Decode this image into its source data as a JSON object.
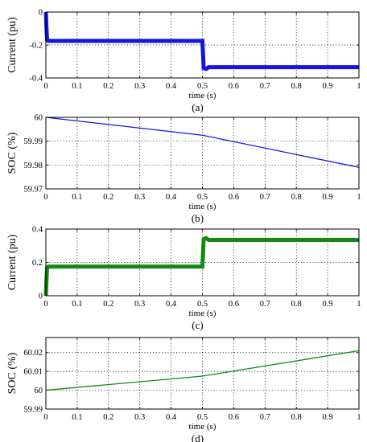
{
  "chart_data": [
    {
      "type": "line",
      "caption": "(a)",
      "xlabel": "time (s)",
      "ylabel": "Current (pu)",
      "xlim": [
        0,
        1
      ],
      "ylim": [
        -0.4,
        0
      ],
      "xticks": [
        "0",
        "0.1",
        "0.2",
        "0.3",
        "0.4",
        "0.5",
        "0.6",
        "0.7",
        "0.8",
        "0.9",
        "1"
      ],
      "yticks": [
        "0",
        "-0.2",
        "-0.4"
      ],
      "grid": true,
      "series": [
        {
          "color": "#1414e6",
          "thick": true,
          "x": [
            0,
            0.002,
            0.004,
            0.008,
            0.5,
            0.504,
            0.512,
            0.52,
            1.0
          ],
          "y": [
            0,
            -0.1,
            -0.17,
            -0.175,
            -0.175,
            -0.34,
            -0.345,
            -0.335,
            -0.335
          ]
        }
      ]
    },
    {
      "type": "line",
      "caption": "(b)",
      "xlabel": "time (s)",
      "ylabel": "SOC (%)",
      "xlim": [
        0,
        1
      ],
      "ylim": [
        59.97,
        60.0
      ],
      "xticks": [
        "0",
        "0.1",
        "0.2",
        "0.3",
        "0.4",
        "0.5",
        "0.6",
        "0.7",
        "0.8",
        "0.9",
        "1"
      ],
      "yticks": [
        "60",
        "59.99",
        "59.98",
        "59.97"
      ],
      "grid": true,
      "series": [
        {
          "color": "#1414e6",
          "thick": false,
          "x": [
            0,
            0.5,
            1.0
          ],
          "y": [
            60.0,
            59.9925,
            59.979
          ]
        }
      ]
    },
    {
      "type": "line",
      "caption": "(c)",
      "xlabel": "time (s)",
      "ylabel": "Current (pu)",
      "xlim": [
        0,
        1
      ],
      "ylim": [
        0,
        0.4
      ],
      "xticks": [
        "0",
        "0.1",
        "0.2",
        "0.3",
        "0.4",
        "0.5",
        "0.6",
        "0.7",
        "0.8",
        "0.9",
        "1"
      ],
      "yticks": [
        "0.4",
        "0.2",
        "0"
      ],
      "grid": true,
      "series": [
        {
          "color": "#128a12",
          "thick": true,
          "x": [
            0,
            0.002,
            0.004,
            0.008,
            0.5,
            0.504,
            0.512,
            0.52,
            1.0
          ],
          "y": [
            0,
            0.1,
            0.17,
            0.175,
            0.175,
            0.34,
            0.345,
            0.335,
            0.335
          ]
        }
      ]
    },
    {
      "type": "line",
      "caption": "(d)",
      "xlabel": "time (s)",
      "ylabel": "SOC (%)",
      "xlim": [
        0,
        1
      ],
      "ylim": [
        59.99,
        60.028
      ],
      "xticks": [
        "0",
        "0.1",
        "0.2",
        "0.3",
        "0.4",
        "0.5",
        "0.6",
        "0.7",
        "0.8",
        "0.9",
        "1"
      ],
      "yticks": [
        "60.02",
        "60.01",
        "60",
        "59.99"
      ],
      "grid": true,
      "series": [
        {
          "color": "#128a12",
          "thick": false,
          "x": [
            0,
            0.5,
            1.0
          ],
          "y": [
            60.0,
            60.0075,
            60.021
          ]
        }
      ]
    }
  ]
}
